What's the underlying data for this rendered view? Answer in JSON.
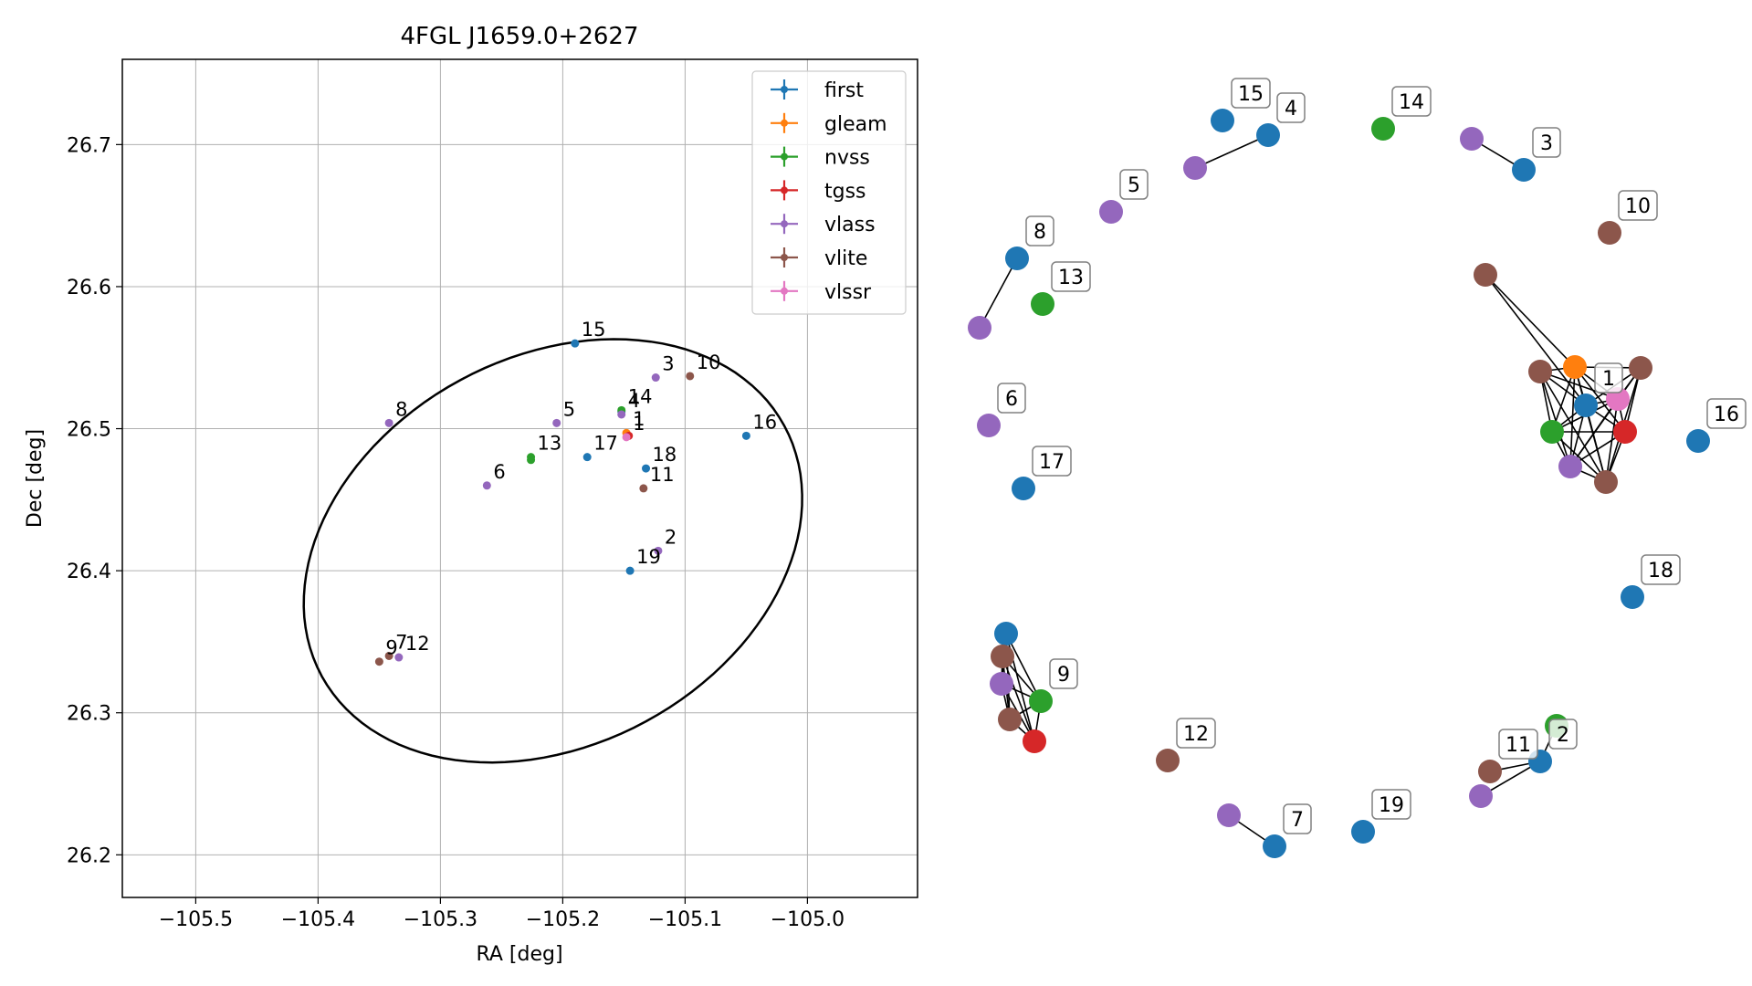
{
  "chart_data": [
    {
      "type": "scatter",
      "title": "4FGL J1659.0+2627",
      "xlabel": "RA [deg]",
      "ylabel": "Dec [deg]",
      "xlim": [
        -105.56,
        -104.91
      ],
      "ylim": [
        26.17,
        26.76
      ],
      "xticks": [
        -105.5,
        -105.4,
        -105.3,
        -105.2,
        -105.1,
        -105.0
      ],
      "xtick_labels": [
        "−105.5",
        "−105.4",
        "−105.3",
        "−105.2",
        "−105.1",
        "−105.0"
      ],
      "yticks": [
        26.2,
        26.3,
        26.4,
        26.5,
        26.6,
        26.7
      ],
      "ytick_labels": [
        "26.2",
        "26.3",
        "26.4",
        "26.5",
        "26.6",
        "26.7"
      ],
      "grid": true,
      "legend_position": "top-right",
      "ellipse": {
        "center": [
          -105.208,
          26.414
        ],
        "semi_axes": [
          0.21,
          0.14
        ],
        "angle_deg": 19,
        "color": "#000000"
      },
      "series": [
        {
          "name": "first",
          "color": "#1f77b4",
          "points": [
            [
              -105.19,
              26.56
            ],
            [
              -105.152,
              26.512
            ],
            [
              -105.05,
              26.495
            ],
            [
              -105.18,
              26.48
            ],
            [
              -105.132,
              26.472
            ],
            [
              -105.145,
              26.4
            ]
          ]
        },
        {
          "name": "gleam",
          "color": "#ff7f0e",
          "points": [
            [
              -105.148,
              26.497
            ]
          ]
        },
        {
          "name": "nvss",
          "color": "#2ca02c",
          "points": [
            [
              -105.152,
              26.513
            ],
            [
              -105.226,
              26.48
            ],
            [
              -105.226,
              26.478
            ]
          ]
        },
        {
          "name": "tgss",
          "color": "#d62728",
          "points": [
            [
              -105.146,
              26.495
            ]
          ]
        },
        {
          "name": "vlass",
          "color": "#9467bd",
          "points": [
            [
              -105.152,
              26.51
            ],
            [
              -105.124,
              26.536
            ],
            [
              -105.205,
              26.504
            ],
            [
              -105.342,
              26.504
            ],
            [
              -105.262,
              26.46
            ],
            [
              -105.122,
              26.414
            ],
            [
              -105.334,
              26.339
            ]
          ]
        },
        {
          "name": "vlite",
          "color": "#8c564b",
          "points": [
            [
              -105.096,
              26.537
            ],
            [
              -105.134,
              26.458
            ],
            [
              -105.342,
              26.34
            ],
            [
              -105.35,
              26.336
            ]
          ]
        },
        {
          "name": "vlssr",
          "color": "#e377c2",
          "points": [
            [
              -105.148,
              26.494
            ]
          ]
        }
      ],
      "annotations": [
        {
          "text": "15",
          "x": -105.19,
          "y": 26.56
        },
        {
          "text": "3",
          "x": -105.124,
          "y": 26.536
        },
        {
          "text": "10",
          "x": -105.096,
          "y": 26.537
        },
        {
          "text": "14",
          "x": -105.152,
          "y": 26.513
        },
        {
          "text": "4",
          "x": -105.152,
          "y": 26.51
        },
        {
          "text": "1",
          "x": -105.148,
          "y": 26.497
        },
        {
          "text": "1",
          "x": -105.148,
          "y": 26.494
        },
        {
          "text": "8",
          "x": -105.342,
          "y": 26.504
        },
        {
          "text": "5",
          "x": -105.205,
          "y": 26.504
        },
        {
          "text": "16",
          "x": -105.05,
          "y": 26.495
        },
        {
          "text": "13",
          "x": -105.226,
          "y": 26.48
        },
        {
          "text": "17",
          "x": -105.18,
          "y": 26.48
        },
        {
          "text": "18",
          "x": -105.132,
          "y": 26.472
        },
        {
          "text": "11",
          "x": -105.134,
          "y": 26.458
        },
        {
          "text": "6",
          "x": -105.262,
          "y": 26.46
        },
        {
          "text": "2",
          "x": -105.122,
          "y": 26.414
        },
        {
          "text": "19",
          "x": -105.145,
          "y": 26.4
        },
        {
          "text": "9",
          "x": -105.35,
          "y": 26.336
        },
        {
          "text": "7",
          "x": -105.342,
          "y": 26.34
        },
        {
          "text": "12",
          "x": -105.334,
          "y": 26.339
        }
      ]
    },
    {
      "type": "network",
      "nodes": [
        {
          "id": "first-15",
          "catalog": "first",
          "label": "15"
        },
        {
          "id": "first-4",
          "catalog": "first",
          "label": "4"
        },
        {
          "id": "vlass-4",
          "catalog": "vlass",
          "label": ""
        },
        {
          "id": "nvss-14",
          "catalog": "nvss",
          "label": "14"
        },
        {
          "id": "vlass-3",
          "catalog": "vlass",
          "label": ""
        },
        {
          "id": "first-3",
          "catalog": "first",
          "label": "3"
        },
        {
          "id": "vlass-5",
          "catalog": "vlass",
          "label": "5"
        },
        {
          "id": "vlite-10",
          "catalog": "vlite",
          "label": "10"
        },
        {
          "id": "first-8",
          "catalog": "first",
          "label": "8"
        },
        {
          "id": "vlass-8",
          "catalog": "vlass",
          "label": ""
        },
        {
          "id": "nvss-13",
          "catalog": "nvss",
          "label": "13"
        },
        {
          "id": "vlite-1a",
          "catalog": "vlite",
          "label": ""
        },
        {
          "id": "gleam-1",
          "catalog": "gleam",
          "label": ""
        },
        {
          "id": "vlite-1b",
          "catalog": "vlite",
          "label": ""
        },
        {
          "id": "vlite-1c",
          "catalog": "vlite",
          "label": ""
        },
        {
          "id": "first-1",
          "catalog": "first",
          "label": "1"
        },
        {
          "id": "vlssr-1",
          "catalog": "vlssr",
          "label": ""
        },
        {
          "id": "nvss-1",
          "catalog": "nvss",
          "label": ""
        },
        {
          "id": "tgss-1",
          "catalog": "tgss",
          "label": ""
        },
        {
          "id": "vlass-1",
          "catalog": "vlass",
          "label": ""
        },
        {
          "id": "vlite-1d",
          "catalog": "vlite",
          "label": ""
        },
        {
          "id": "vlass-6",
          "catalog": "vlass",
          "label": "6"
        },
        {
          "id": "first-16",
          "catalog": "first",
          "label": "16"
        },
        {
          "id": "first-17",
          "catalog": "first",
          "label": "17"
        },
        {
          "id": "first-18",
          "catalog": "first",
          "label": "18"
        },
        {
          "id": "first-9",
          "catalog": "first",
          "label": ""
        },
        {
          "id": "vlite-9a",
          "catalog": "vlite",
          "label": ""
        },
        {
          "id": "vlass-9",
          "catalog": "vlass",
          "label": ""
        },
        {
          "id": "nvss-9",
          "catalog": "nvss",
          "label": "9"
        },
        {
          "id": "vlite-9b",
          "catalog": "vlite",
          "label": ""
        },
        {
          "id": "tgss-9",
          "catalog": "tgss",
          "label": ""
        },
        {
          "id": "vlite-12",
          "catalog": "vlite",
          "label": "12"
        },
        {
          "id": "nvss-2",
          "catalog": "nvss",
          "label": ""
        },
        {
          "id": "first-2",
          "catalog": "first",
          "label": "2"
        },
        {
          "id": "vlite-11",
          "catalog": "vlite",
          "label": "11"
        },
        {
          "id": "vlass-11",
          "catalog": "vlass",
          "label": ""
        },
        {
          "id": "vlass-7",
          "catalog": "vlass",
          "label": ""
        },
        {
          "id": "first-7",
          "catalog": "first",
          "label": "7"
        },
        {
          "id": "first-19",
          "catalog": "first",
          "label": "19"
        }
      ],
      "edges": [
        [
          "vlass-4",
          "first-4"
        ],
        [
          "vlass-3",
          "first-3"
        ],
        [
          "first-8",
          "vlass-8"
        ],
        [
          "vlite-1a",
          "gleam-1"
        ],
        [
          "vlite-1a",
          "first-1"
        ],
        [
          "gleam-1",
          "vlite-1b"
        ],
        [
          "gleam-1",
          "vlite-1c"
        ],
        [
          "gleam-1",
          "first-1"
        ],
        [
          "gleam-1",
          "vlssr-1"
        ],
        [
          "gleam-1",
          "nvss-1"
        ],
        [
          "gleam-1",
          "tgss-1"
        ],
        [
          "gleam-1",
          "vlass-1"
        ],
        [
          "gleam-1",
          "vlite-1d"
        ],
        [
          "vlite-1b",
          "first-1"
        ],
        [
          "vlite-1b",
          "nvss-1"
        ],
        [
          "vlite-1b",
          "vlass-1"
        ],
        [
          "vlite-1b",
          "vlite-1d"
        ],
        [
          "vlite-1b",
          "vlssr-1"
        ],
        [
          "vlite-1c",
          "vlssr-1"
        ],
        [
          "vlite-1c",
          "tgss-1"
        ],
        [
          "vlite-1c",
          "vlite-1d"
        ],
        [
          "vlite-1c",
          "first-1"
        ],
        [
          "vlite-1c",
          "vlass-1"
        ],
        [
          "first-1",
          "vlssr-1"
        ],
        [
          "first-1",
          "nvss-1"
        ],
        [
          "first-1",
          "tgss-1"
        ],
        [
          "first-1",
          "vlass-1"
        ],
        [
          "first-1",
          "vlite-1d"
        ],
        [
          "vlssr-1",
          "nvss-1"
        ],
        [
          "vlssr-1",
          "tgss-1"
        ],
        [
          "vlssr-1",
          "vlass-1"
        ],
        [
          "vlssr-1",
          "vlite-1d"
        ],
        [
          "nvss-1",
          "tgss-1"
        ],
        [
          "nvss-1",
          "vlass-1"
        ],
        [
          "nvss-1",
          "vlite-1d"
        ],
        [
          "tgss-1",
          "vlass-1"
        ],
        [
          "tgss-1",
          "vlite-1d"
        ],
        [
          "vlass-1",
          "vlite-1d"
        ],
        [
          "first-9",
          "vlite-9a"
        ],
        [
          "first-9",
          "vlass-9"
        ],
        [
          "first-9",
          "nvss-9"
        ],
        [
          "first-9",
          "vlite-9b"
        ],
        [
          "first-9",
          "tgss-9"
        ],
        [
          "vlite-9a",
          "vlass-9"
        ],
        [
          "vlite-9a",
          "nvss-9"
        ],
        [
          "vlite-9a",
          "vlite-9b"
        ],
        [
          "vlite-9a",
          "tgss-9"
        ],
        [
          "vlass-9",
          "nvss-9"
        ],
        [
          "vlass-9",
          "vlite-9b"
        ],
        [
          "vlass-9",
          "tgss-9"
        ],
        [
          "nvss-9",
          "vlite-9b"
        ],
        [
          "nvss-9",
          "tgss-9"
        ],
        [
          "vlite-9b",
          "tgss-9"
        ],
        [
          "nvss-2",
          "first-2"
        ],
        [
          "vlite-11",
          "first-2"
        ],
        [
          "vlass-11",
          "first-2"
        ],
        [
          "vlass-7",
          "first-7"
        ]
      ]
    }
  ],
  "colors": {
    "first": "#1f77b4",
    "gleam": "#ff7f0e",
    "nvss": "#2ca02c",
    "tgss": "#d62728",
    "vlass": "#9467bd",
    "vlite": "#8c564b",
    "vlssr": "#e377c2"
  }
}
